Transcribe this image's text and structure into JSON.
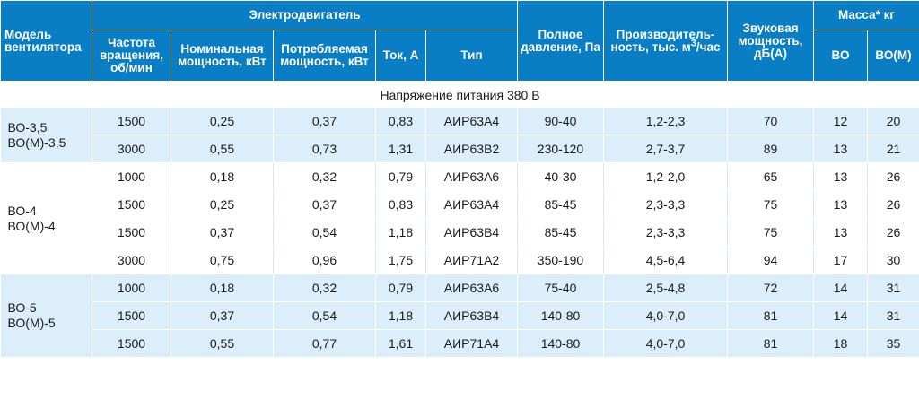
{
  "header": {
    "model": "Модель вентилятора",
    "motor_group": "Электродвигатель",
    "rpm": "Частота вращения, об/мин",
    "nominal_power": "Номинальная мощность, кВт",
    "consumed_power": "Потребляемая мощность, кВт",
    "current": "Ток, А",
    "type": "Тип",
    "pressure": "Полное давление, Па",
    "capacity_pre": "Производитель-ность, тыс. м",
    "capacity_sup": "3",
    "capacity_post": "/час",
    "sound": "Звуковая мощность, дБ(А)",
    "mass": "Масса* кг",
    "mass_vo": "ВО",
    "mass_vom": "ВО(М)"
  },
  "section_label": "Напряжение питания 380 В",
  "groups": [
    {
      "model_line1": "ВО-3,5",
      "model_line2": "ВО(М)-3,5",
      "rows": [
        {
          "rpm": "1500",
          "nominal": "0,25",
          "consumed": "0,37",
          "current": "0,83",
          "type": "АИР63А4",
          "pressure": "90-40",
          "capacity": "1,2-2,3",
          "sound": "70",
          "vo": "12",
          "vom": "20"
        },
        {
          "rpm": "3000",
          "nominal": "0,55",
          "consumed": "0,73",
          "current": "1,31",
          "type": "АИР63В2",
          "pressure": "230-120",
          "capacity": "2,7-3,7",
          "sound": "89",
          "vo": "13",
          "vom": "21"
        }
      ]
    },
    {
      "model_line1": "ВО-4",
      "model_line2": "ВО(М)-4",
      "rows": [
        {
          "rpm": "1000",
          "nominal": "0,18",
          "consumed": "0,32",
          "current": "0,79",
          "type": "АИР63А6",
          "pressure": "40-30",
          "capacity": "1,2-2,0",
          "sound": "65",
          "vo": "13",
          "vom": "26"
        },
        {
          "rpm": "1500",
          "nominal": "0,25",
          "consumed": "0,37",
          "current": "0,83",
          "type": "АИР63А4",
          "pressure": "85-45",
          "capacity": "2,3-3,3",
          "sound": "75",
          "vo": "13",
          "vom": "26"
        },
        {
          "rpm": "1500",
          "nominal": "0,37",
          "consumed": "0,54",
          "current": "1,18",
          "type": "АИР63В4",
          "pressure": "85-45",
          "capacity": "2,3-3,3",
          "sound": "75",
          "vo": "13",
          "vom": "26"
        },
        {
          "rpm": "3000",
          "nominal": "0,75",
          "consumed": "0,96",
          "current": "1,75",
          "type": "АИР71А2",
          "pressure": "350-190",
          "capacity": "4,5-6,4",
          "sound": "94",
          "vo": "17",
          "vom": "30"
        }
      ]
    },
    {
      "model_line1": "ВО-5",
      "model_line2": "ВО(М)-5",
      "rows": [
        {
          "rpm": "1000",
          "nominal": "0,18",
          "consumed": "0,32",
          "current": "0,79",
          "type": "АИР63А6",
          "pressure": "75-40",
          "capacity": "2,5-4,8",
          "sound": "72",
          "vo": "14",
          "vom": "31"
        },
        {
          "rpm": "1500",
          "nominal": "0,37",
          "consumed": "0,54",
          "current": "1,18",
          "type": "АИР63В4",
          "pressure": "140-80",
          "capacity": "4,0-7,0",
          "sound": "81",
          "vo": "14",
          "vom": "31"
        },
        {
          "rpm": "1500",
          "nominal": "0,55",
          "consumed": "0,77",
          "current": "1,61",
          "type": "АИР71А4",
          "pressure": "140-80",
          "capacity": "4,0-7,0",
          "sound": "81",
          "vo": "18",
          "vom": "35"
        }
      ]
    }
  ]
}
